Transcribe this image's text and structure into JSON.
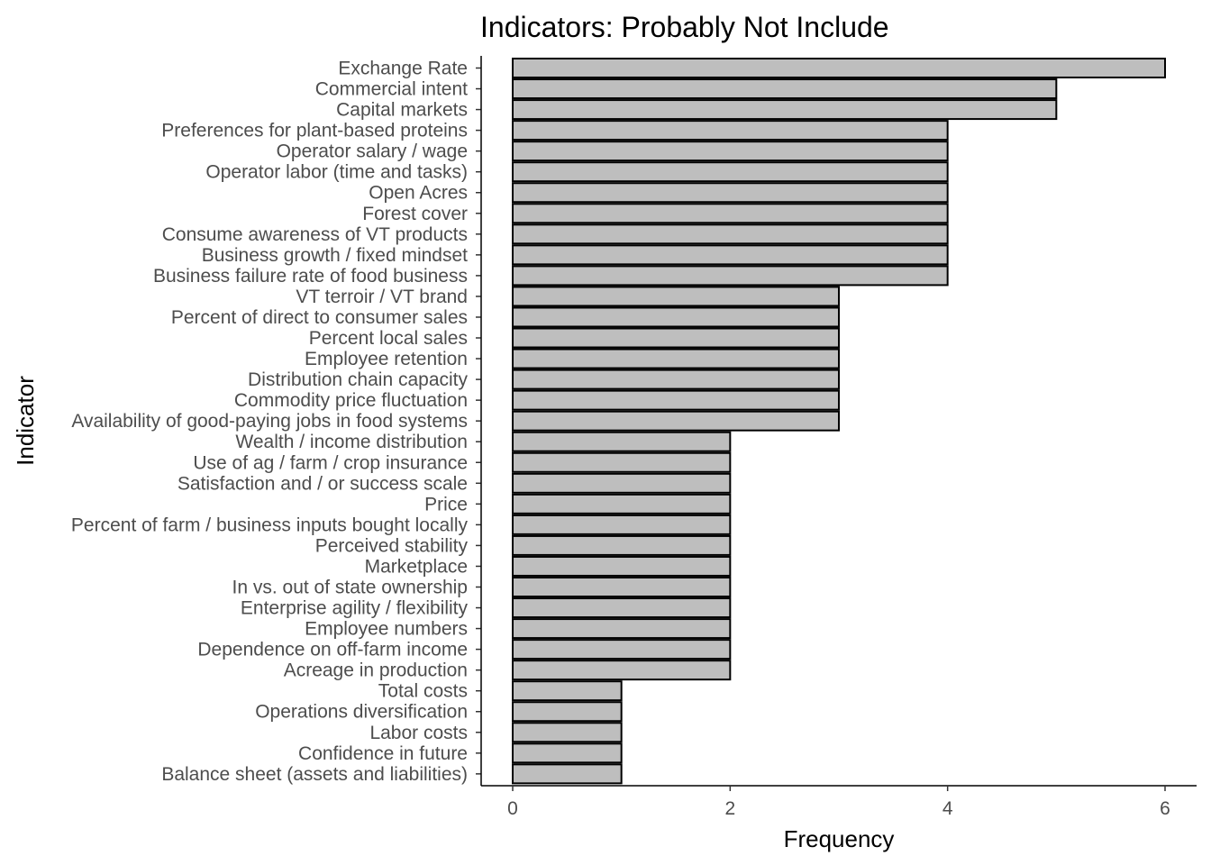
{
  "chart_data": {
    "type": "bar",
    "orientation": "horizontal",
    "title": "Indicators: Probably Not Include",
    "xlabel": "Frequency",
    "ylabel": "Indicator",
    "xlim": [
      -0.45,
      6.45
    ],
    "xticks": [
      0,
      2,
      4,
      6
    ],
    "grid": false,
    "legend": "none",
    "bar_color": "#bebebe",
    "bar_border_color": "#000000",
    "categories": [
      "Exchange Rate",
      "Commercial intent",
      "Capital markets",
      "Preferences for plant-based proteins",
      "Operator salary / wage",
      "Operator labor (time and tasks)",
      "Open Acres",
      "Forest cover",
      "Consume awareness of VT products",
      "Business growth / fixed mindset",
      "Business failure rate of food business",
      "VT terroir / VT brand",
      "Percent of direct to consumer sales",
      "Percent local sales",
      "Employee retention",
      "Distribution chain capacity",
      "Commodity price fluctuation",
      "Availability of good-paying jobs in food systems",
      "Wealth / income distribution",
      "Use of ag / farm / crop insurance",
      "Satisfaction and / or success scale",
      "Price",
      "Percent of farm / business inputs bought locally",
      "Perceived stability",
      "Marketplace",
      "In vs. out of state ownership",
      "Enterprise agility / flexibility",
      "Employee numbers",
      "Dependence on off-farm income",
      "Acreage in production",
      "Total costs",
      "Operations diversification",
      "Labor costs",
      "Confidence in future",
      "Balance sheet (assets and liabilities)"
    ],
    "values": [
      6,
      5,
      5,
      4,
      4,
      4,
      4,
      4,
      4,
      4,
      4,
      3,
      3,
      3,
      3,
      3,
      3,
      3,
      2,
      2,
      2,
      2,
      2,
      2,
      2,
      2,
      2,
      2,
      2,
      2,
      1,
      1,
      1,
      1,
      1
    ]
  }
}
